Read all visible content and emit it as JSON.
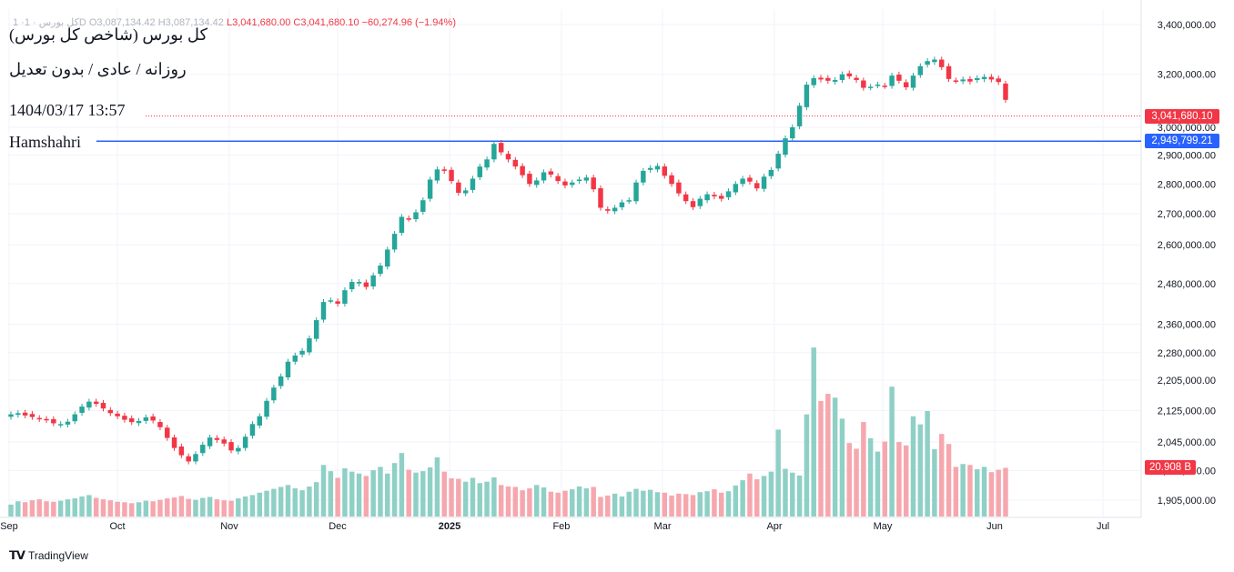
{
  "legend": {
    "muted_prefix": "1 ·کل بورس · 1D",
    "open": "O3,087,134.42",
    "high": "H3,087,134.42",
    "low": "L3,041,680.00",
    "close": "C3,041,680.10",
    "change": "−60,274.96 (−1.94%)"
  },
  "annotations": {
    "title": "کل بورس (شاخص کل بورس)",
    "subtitle": "روزانه / عادی / بدون تعدیل",
    "timestamp": "1404/03/17 13:57",
    "hline_label": "Hamshahri"
  },
  "price_labels": {
    "last": "3,041,680.10",
    "hline": "2,949,799.21",
    "volume": "20.908 B"
  },
  "branding": "TradingView",
  "colors": {
    "up": "#26a69a",
    "down": "#f23645",
    "volume_up": "#8fd0c6",
    "volume_down": "#f6a7ae",
    "hline": "#2962ff",
    "grid": "#f0f3fa"
  },
  "chart_data": {
    "type": "candlestick",
    "y_scale": "log",
    "y_ticks": [
      "3,400,000.00",
      "3,200,000.00",
      "3,000,000.00",
      "2,900,000.00",
      "2,800,000.00",
      "2,700,000.00",
      "2,600,000.00",
      "2,480,000.00",
      "2,360,000.00",
      "2,280,000.00",
      "2,205,000.00",
      "2,125,000.00",
      "2,045,000.00",
      "1,975,000.00",
      "1,905,000.00"
    ],
    "y_tick_values": [
      3400000,
      3200000,
      3000000,
      2900000,
      2800000,
      2700000,
      2600000,
      2480000,
      2360000,
      2280000,
      2205000,
      2125000,
      2045000,
      1975000,
      1905000
    ],
    "x_ticks": [
      "Sep",
      "Oct",
      "Nov",
      "Dec",
      "2025",
      "Feb",
      "Mar",
      "Apr",
      "May",
      "Jun",
      "Jul"
    ],
    "x_tick_values": [
      "2024-09-01",
      "2024-10-01",
      "2024-11-01",
      "2024-12-01",
      "2025-01-01",
      "2025-02-01",
      "2025-03-01",
      "2025-04-01",
      "2025-05-01",
      "2025-06-01",
      "2025-07-01"
    ],
    "x_range": [
      "2024-09-01",
      "2025-07-10"
    ],
    "last_price": 3041680.1,
    "horizontal_line": 2949799.21,
    "closes": [
      2115000,
      2118000,
      2112000,
      2108000,
      2103000,
      2100000,
      2092000,
      2090000,
      2096000,
      2115000,
      2135000,
      2148000,
      2142000,
      2130000,
      2118000,
      2110000,
      2101000,
      2095000,
      2098000,
      2107000,
      2099000,
      2082000,
      2055000,
      2030000,
      2012000,
      1997000,
      2015000,
      2038000,
      2056000,
      2050000,
      2041000,
      2024000,
      2030000,
      2058000,
      2090000,
      2110000,
      2150000,
      2185000,
      2215000,
      2255000,
      2272000,
      2285000,
      2320000,
      2372000,
      2425000,
      2430000,
      2420000,
      2460000,
      2485000,
      2485000,
      2470000,
      2505000,
      2535000,
      2585000,
      2635000,
      2690000,
      2684000,
      2705000,
      2745000,
      2815000,
      2850000,
      2845000,
      2810000,
      2770000,
      2778000,
      2818000,
      2860000,
      2885000,
      2940000,
      2910000,
      2885000,
      2860000,
      2830000,
      2800000,
      2812000,
      2840000,
      2832000,
      2810000,
      2795000,
      2805000,
      2815000,
      2822000,
      2782000,
      2720000,
      2710000,
      2720000,
      2738000,
      2745000,
      2805000,
      2845000,
      2855000,
      2862000,
      2828000,
      2800000,
      2768000,
      2742000,
      2722000,
      2750000,
      2765000,
      2758000,
      2750000,
      2775000,
      2800000,
      2818000,
      2808000,
      2785000,
      2825000,
      2848000,
      2905000,
      2960000,
      3000000,
      3080000,
      3160000,
      3185000,
      3180000,
      3175000,
      3178000,
      3200000,
      3192000,
      3178000,
      3148000,
      3152000,
      3160000,
      3155000,
      3195000,
      3175000,
      3150000,
      3195000,
      3232000,
      3252000,
      3258000,
      3228000,
      3182000,
      3175000,
      3180000,
      3172000,
      3185000,
      3190000,
      3180000,
      3170000,
      3102000
    ],
    "volume_axis_range": [
      0,
      40
    ],
    "volumes": [
      2.5,
      3.2,
      3.0,
      3.4,
      3.6,
      3.2,
      3.1,
      3.3,
      3.6,
      3.8,
      4.2,
      4.5,
      3.9,
      3.6,
      3.4,
      3.1,
      3.0,
      2.8,
      3.0,
      3.3,
      3.2,
      3.5,
      3.8,
      4.0,
      4.3,
      3.7,
      3.5,
      3.9,
      4.1,
      3.6,
      3.4,
      3.3,
      3.8,
      4.2,
      4.5,
      5.0,
      5.4,
      5.8,
      6.2,
      6.6,
      5.9,
      5.5,
      6.3,
      7.2,
      10.8,
      9.5,
      8.1,
      10.1,
      9.4,
      9.0,
      8.5,
      9.7,
      10.4,
      9.0,
      11.2,
      13.3,
      9.8,
      9.2,
      9.5,
      10.3,
      12.4,
      9.4,
      8.0,
      7.9,
      7.3,
      8.1,
      7.0,
      7.3,
      8.2,
      6.6,
      6.3,
      6.2,
      5.5,
      5.9,
      6.6,
      6.1,
      5.2,
      5.0,
      5.4,
      5.7,
      6.3,
      5.9,
      6.2,
      4.1,
      4.4,
      4.8,
      4.2,
      5.2,
      5.8,
      5.4,
      5.6,
      5.1,
      5.0,
      4.4,
      4.8,
      4.7,
      4.5,
      5.1,
      5.3,
      5.7,
      5.0,
      5.3,
      6.5,
      7.6,
      9.0,
      7.8,
      8.5,
      9.4,
      18.2,
      10.0,
      9.2,
      8.6,
      21.4,
      35.4,
      24.2,
      25.7,
      24.9,
      20.5,
      15.4,
      14.2,
      19.8,
      16.4,
      13.6,
      15.7,
      27.2,
      15.6,
      14.9,
      21.0,
      19.3,
      22.1,
      14.1,
      17.3,
      15.2,
      10.4,
      11.0,
      10.8,
      9.9,
      10.4,
      9.3,
      9.8,
      10.2
    ]
  }
}
